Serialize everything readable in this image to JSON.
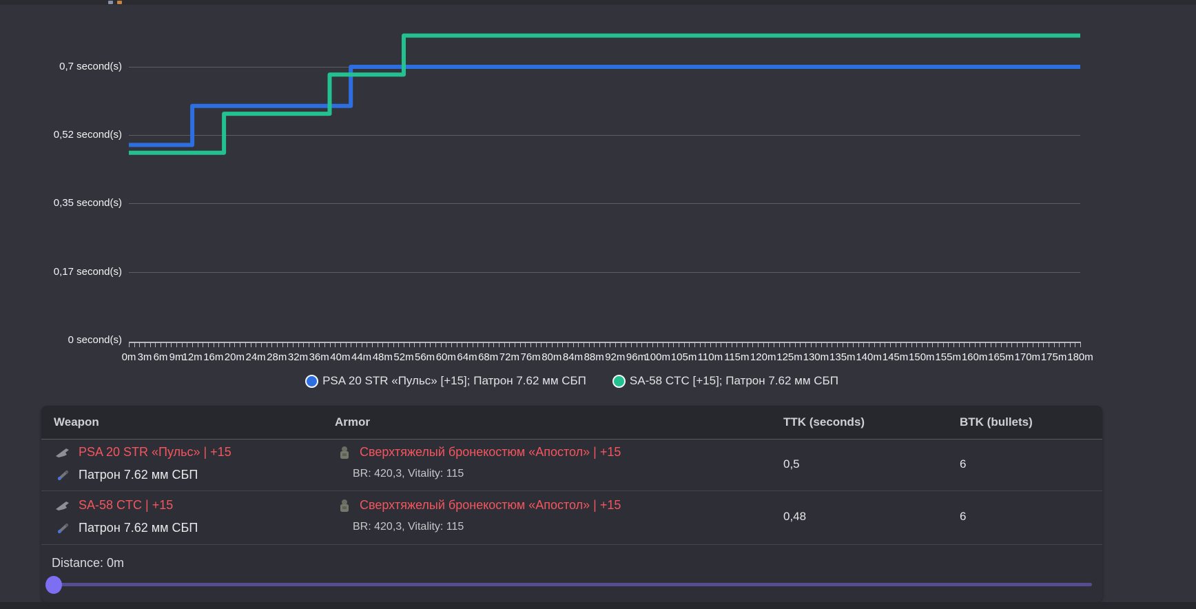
{
  "colors": {
    "background": "#33343b",
    "blue_series": "#2d6fe1",
    "green_series": "#23c190",
    "red_highlight": "#f4555f",
    "slider_track": "#544e91",
    "slider_thumb": "#7e6ef2",
    "gridline": "#5d5e64"
  },
  "chart_data": {
    "type": "line",
    "step": true,
    "x_range": [
      0,
      180
    ],
    "x_unit": "m",
    "y_unit": "second(s)",
    "grid": true,
    "legend_position": "bottom",
    "y_ticks": [
      {
        "value": 0,
        "label": "0 second(s)"
      },
      {
        "value": 0.175,
        "label": "0,17 second(s)"
      },
      {
        "value": 0.35,
        "label": "0,35 second(s)"
      },
      {
        "value": 0.525,
        "label": "0,52 second(s)"
      },
      {
        "value": 0.7,
        "label": "0,7 second(s)"
      }
    ],
    "x_tick_labels": [
      "0m",
      "3m",
      "6m",
      "9m",
      "12m",
      "16m",
      "20m",
      "24m",
      "28m",
      "32m",
      "36m",
      "40m",
      "44m",
      "48m",
      "52m",
      "56m",
      "60m",
      "64m",
      "68m",
      "72m",
      "76m",
      "80m",
      "84m",
      "88m",
      "92m",
      "96m",
      "100m",
      "105m",
      "110m",
      "115m",
      "120m",
      "125m",
      "130m",
      "135m",
      "140m",
      "145m",
      "150m",
      "155m",
      "160m",
      "165m",
      "170m",
      "175m",
      "180m"
    ],
    "series": [
      {
        "name": "PSA 20 STR «Пульс» [+15]; Патрон 7.62 мм СБП",
        "color": "#2d6fe1",
        "points": [
          [
            0,
            0.5
          ],
          [
            12,
            0.5
          ],
          [
            12,
            0.6
          ],
          [
            42,
            0.6
          ],
          [
            42,
            0.7
          ],
          [
            180,
            0.7
          ]
        ]
      },
      {
        "name": "SA-58 CTC [+15]; Патрон 7.62 мм СБП",
        "color": "#23c190",
        "points": [
          [
            0,
            0.48
          ],
          [
            18,
            0.48
          ],
          [
            18,
            0.58
          ],
          [
            38,
            0.58
          ],
          [
            38,
            0.68
          ],
          [
            52,
            0.68
          ],
          [
            52,
            0.78
          ],
          [
            180,
            0.78
          ]
        ]
      }
    ]
  },
  "table": {
    "headers": {
      "weapon": "Weapon",
      "armor": "Armor",
      "ttk": "TTK (seconds)",
      "btk": "BTK (bullets)"
    },
    "rows": [
      {
        "weapon_name": "PSA 20 STR «Пульс» | +15",
        "weapon_ammo": "Патрон 7.62 мм СБП",
        "armor_name": "Сверхтяжелый бронекостюм «Апостол» | +15",
        "armor_stats": "BR: 420,3, Vitality: 115",
        "ttk": "0,5",
        "btk": "6"
      },
      {
        "weapon_name": "SA-58 CTC | +15",
        "weapon_ammo": "Патрон 7.62 мм СБП",
        "armor_name": "Сверхтяжелый бронекостюм «Апостол» | +15",
        "armor_stats": "BR: 420,3, Vitality: 115",
        "ttk": "0,48",
        "btk": "6"
      }
    ]
  },
  "slider": {
    "label": "Distance: 0m"
  }
}
